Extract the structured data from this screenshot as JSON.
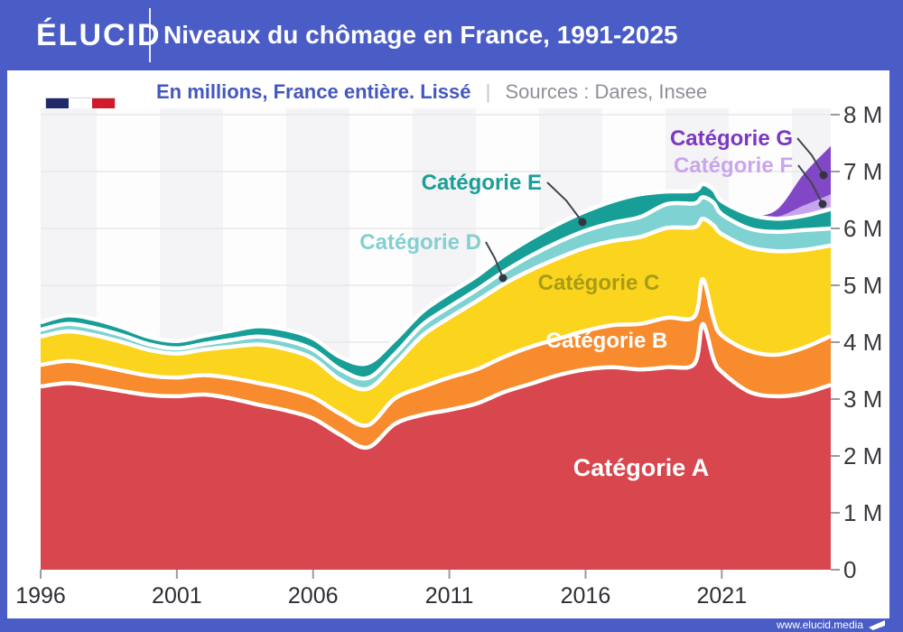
{
  "header": {
    "logo": "ÉLUCID",
    "title": "Niveaux du chômage en France, 1991-2025"
  },
  "subtitle": {
    "text": "En millions, France entière. Lissé",
    "divider": "|",
    "sources": "Sources : Dares, Insee"
  },
  "flag_icon": {
    "name": "france-flag-icon",
    "colors": {
      "navy": "#212a68",
      "white": "#ffffff",
      "red": "#cf1b2b"
    }
  },
  "footer": {
    "url": "www.elucid.media"
  },
  "theme": {
    "frame_blue": "#4a5cc5",
    "grid_color": "#e9e7ec",
    "stripe_gray": "#f4f3f5",
    "stripe_white": "#fdfdfe",
    "axis_text": "#38383f",
    "leader_color": "#44444e",
    "dot_color": "#35353f"
  },
  "chart_data": {
    "type": "area",
    "stacked": true,
    "title": "Niveaux du chômage en France, 1991-2025",
    "unit": "millions de personnes",
    "xlim": [
      1996,
      2025
    ],
    "ylim": [
      0,
      8
    ],
    "grid": true,
    "x_tick_labels": [
      "1996",
      "2001",
      "2006",
      "2011",
      "2016",
      "2021"
    ],
    "x_tick_values": [
      1996,
      2001,
      2006,
      2011,
      2016,
      2021
    ],
    "y_tick_labels": [
      "0",
      "1 M",
      "2 M",
      "3 M",
      "4 M",
      "5 M",
      "6 M",
      "7 M",
      "8 M"
    ],
    "y_tick_values": [
      0,
      1,
      2,
      3,
      4,
      5,
      6,
      7,
      8
    ],
    "x": [
      1996,
      1997,
      1998,
      1999,
      2000,
      2001,
      2002,
      2003,
      2004,
      2005,
      2006,
      2007,
      2008,
      2009,
      2010,
      2011,
      2012,
      2013,
      2014,
      2015,
      2016,
      2017,
      2018,
      2019,
      2020,
      2020.3,
      2020.7,
      2021,
      2022,
      2023,
      2024,
      2025
    ],
    "series": [
      {
        "key": "A",
        "label": "Catégorie A",
        "color": "#d8464e",
        "label_color": "#ffffff",
        "values": [
          3.22,
          3.28,
          3.22,
          3.14,
          3.07,
          3.05,
          3.08,
          3.01,
          2.9,
          2.8,
          2.66,
          2.37,
          2.15,
          2.56,
          2.72,
          2.81,
          2.92,
          3.12,
          3.27,
          3.42,
          3.52,
          3.56,
          3.52,
          3.56,
          3.62,
          4.32,
          3.7,
          3.48,
          3.13,
          3.05,
          3.1,
          3.25
        ]
      },
      {
        "key": "B",
        "label": "Catégorie B",
        "color": "#f78b2d",
        "label_color": "#ffffff",
        "values": [
          0.38,
          0.39,
          0.38,
          0.36,
          0.34,
          0.33,
          0.34,
          0.36,
          0.38,
          0.38,
          0.37,
          0.37,
          0.39,
          0.45,
          0.49,
          0.57,
          0.6,
          0.62,
          0.65,
          0.64,
          0.68,
          0.74,
          0.8,
          0.87,
          0.83,
          0.79,
          0.7,
          0.64,
          0.72,
          0.73,
          0.8,
          0.86
        ]
      },
      {
        "key": "C",
        "label": "Catégorie C",
        "color": "#fbd41e",
        "label_color": "#a89c15",
        "values": [
          0.5,
          0.52,
          0.52,
          0.5,
          0.45,
          0.42,
          0.45,
          0.55,
          0.68,
          0.7,
          0.68,
          0.6,
          0.64,
          0.6,
          0.9,
          1.05,
          1.2,
          1.28,
          1.35,
          1.42,
          1.46,
          1.48,
          1.53,
          1.58,
          1.57,
          1.06,
          1.65,
          1.78,
          1.82,
          1.82,
          1.72,
          1.59
        ]
      },
      {
        "key": "D",
        "label": "Catégorie D",
        "color": "#7fd2d2",
        "label_color": "#84d0d1",
        "values": [
          0.12,
          0.13,
          0.13,
          0.12,
          0.1,
          0.09,
          0.1,
          0.12,
          0.14,
          0.15,
          0.16,
          0.18,
          0.19,
          0.18,
          0.19,
          0.19,
          0.2,
          0.22,
          0.25,
          0.28,
          0.3,
          0.32,
          0.35,
          0.42,
          0.42,
          0.38,
          0.4,
          0.35,
          0.33,
          0.34,
          0.35,
          0.3
        ]
      },
      {
        "key": "E",
        "label": "Catégorie E",
        "color": "#179e97",
        "label_color": "#1a9f98",
        "values": [
          0.13,
          0.15,
          0.15,
          0.14,
          0.13,
          0.13,
          0.14,
          0.16,
          0.18,
          0.19,
          0.2,
          0.22,
          0.26,
          0.25,
          0.23,
          0.24,
          0.24,
          0.28,
          0.3,
          0.32,
          0.34,
          0.38,
          0.4,
          0.22,
          0.22,
          0.23,
          0.23,
          0.23,
          0.25,
          0.23,
          0.25,
          0.34
        ]
      },
      {
        "key": "F",
        "label": "Catégorie F",
        "color": "#c7a4ec",
        "label_color": "#c9a6ec",
        "values": [
          0,
          0,
          0,
          0,
          0,
          0,
          0,
          0,
          0,
          0,
          0,
          0,
          0,
          0,
          0,
          0,
          0,
          0,
          0,
          0,
          0,
          0,
          0,
          0,
          0,
          0,
          0,
          0,
          0,
          0.03,
          0.18,
          0.26
        ]
      },
      {
        "key": "G",
        "label": "Catégorie G",
        "color": "#8147c6",
        "label_color": "#7a39c0",
        "values": [
          0,
          0,
          0,
          0,
          0,
          0,
          0,
          0,
          0,
          0,
          0,
          0,
          0,
          0,
          0,
          0,
          0,
          0,
          0,
          0,
          0,
          0,
          0,
          0,
          0,
          0,
          0,
          0,
          0,
          0.12,
          0.55,
          0.85
        ]
      }
    ],
    "legend_position": "annotations-on-chart",
    "sources": "Dares, Insee"
  }
}
